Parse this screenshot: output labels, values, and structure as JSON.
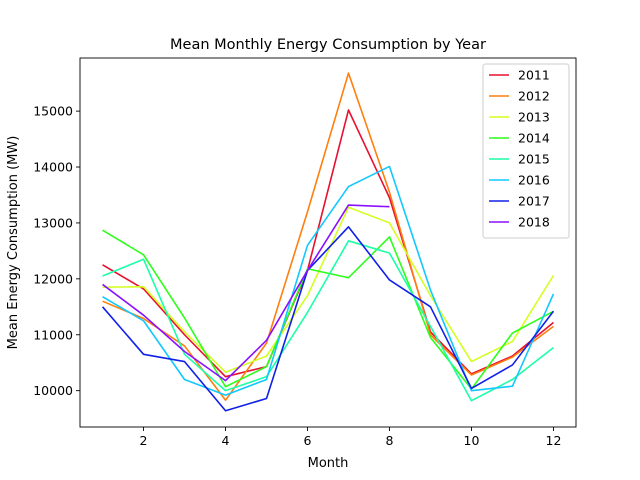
{
  "chart_data": {
    "type": "line",
    "title": "Mean Monthly Energy Consumption by Year",
    "xlabel": "Month",
    "ylabel": "Mean Energy Consumption (MW)",
    "xlim": [
      0.45,
      12.55
    ],
    "ylim": [
      9350,
      15950
    ],
    "xticks": [
      2,
      4,
      6,
      8,
      10,
      12
    ],
    "yticks": [
      10000,
      11000,
      12000,
      13000,
      14000,
      15000
    ],
    "grid": false,
    "legend_position": "top-right",
    "x": [
      1,
      2,
      3,
      4,
      5,
      6,
      7,
      8,
      9,
      10,
      11,
      12
    ],
    "series": [
      {
        "name": "2011",
        "color": "#e8102f",
        "values": [
          12250,
          11820,
          11000,
          10250,
          10430,
          12150,
          15020,
          13450,
          11050,
          10300,
          10620,
          11220
        ]
      },
      {
        "name": "2012",
        "color": "#ff7f0e",
        "values": [
          11600,
          11290,
          10800,
          9830,
          10850,
          13200,
          15680,
          13550,
          11000,
          10280,
          10600,
          11150
        ]
      },
      {
        "name": "2013",
        "color": "#d4ff20",
        "values": [
          11850,
          11860,
          11050,
          10330,
          10620,
          11700,
          13280,
          13000,
          11700,
          10520,
          10880,
          12060
        ]
      },
      {
        "name": "2014",
        "color": "#2cff1a",
        "values": [
          12870,
          12430,
          11300,
          10070,
          10430,
          12180,
          12020,
          12750,
          10950,
          10030,
          11030,
          11420
        ]
      },
      {
        "name": "2015",
        "color": "#1cffa8",
        "values": [
          12050,
          12350,
          10650,
          10000,
          10250,
          11400,
          12680,
          12460,
          11150,
          9820,
          10200,
          10770
        ]
      },
      {
        "name": "2016",
        "color": "#12c8ff",
        "values": [
          11680,
          11250,
          10200,
          9920,
          10200,
          12600,
          13650,
          14010,
          11800,
          10000,
          10080,
          11730
        ]
      },
      {
        "name": "2017",
        "color": "#1020e8",
        "values": [
          11500,
          10650,
          10520,
          9640,
          9860,
          12150,
          12930,
          11980,
          11500,
          10040,
          10460,
          11420
        ]
      },
      {
        "name": "2018",
        "color": "#8a10ff",
        "values": [
          11900,
          11350,
          10700,
          10180,
          10900,
          12150,
          13320,
          13290,
          null,
          null,
          null,
          null
        ]
      }
    ]
  }
}
